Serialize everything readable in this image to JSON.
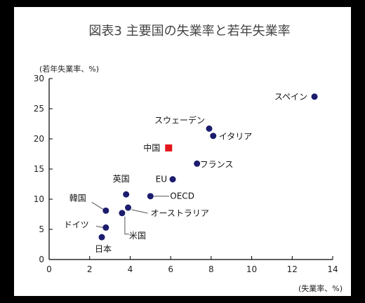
{
  "chart_data": {
    "type": "scatter",
    "title": "図表3 主要国の失業率と若年失業率",
    "xlabel": "(失業率、%)",
    "ylabel": "(若年失業率、%)",
    "xlim": [
      0,
      14
    ],
    "ylim": [
      0,
      30
    ],
    "xticks": [
      0,
      2,
      4,
      6,
      8,
      10,
      12,
      14
    ],
    "yticks": [
      0,
      5,
      10,
      15,
      20,
      25,
      30
    ],
    "grid": false,
    "colors": {
      "point": "#1c1c6e",
      "highlight": "#e3161c",
      "axis": "#000000"
    },
    "points": [
      {
        "name": "スペイン",
        "x": 13.1,
        "y": 27.0
      },
      {
        "name": "スウェーデン",
        "x": 7.9,
        "y": 21.7
      },
      {
        "name": "イタリア",
        "x": 8.1,
        "y": 20.5
      },
      {
        "name": "中国",
        "x": 5.9,
        "y": 18.5,
        "highlight": true
      },
      {
        "name": "フランス",
        "x": 7.3,
        "y": 15.9
      },
      {
        "name": "EU",
        "x": 6.1,
        "y": 13.3
      },
      {
        "name": "英国",
        "x": 3.8,
        "y": 10.8
      },
      {
        "name": "OECD",
        "x": 5.0,
        "y": 10.5
      },
      {
        "name": "韓国",
        "x": 2.8,
        "y": 8.1
      },
      {
        "name": "オーストラリア",
        "x": 3.9,
        "y": 8.6
      },
      {
        "name": "米国",
        "x": 3.6,
        "y": 7.7
      },
      {
        "name": "ドイツ",
        "x": 2.8,
        "y": 5.3
      },
      {
        "name": "日本",
        "x": 2.6,
        "y": 3.7
      }
    ]
  }
}
